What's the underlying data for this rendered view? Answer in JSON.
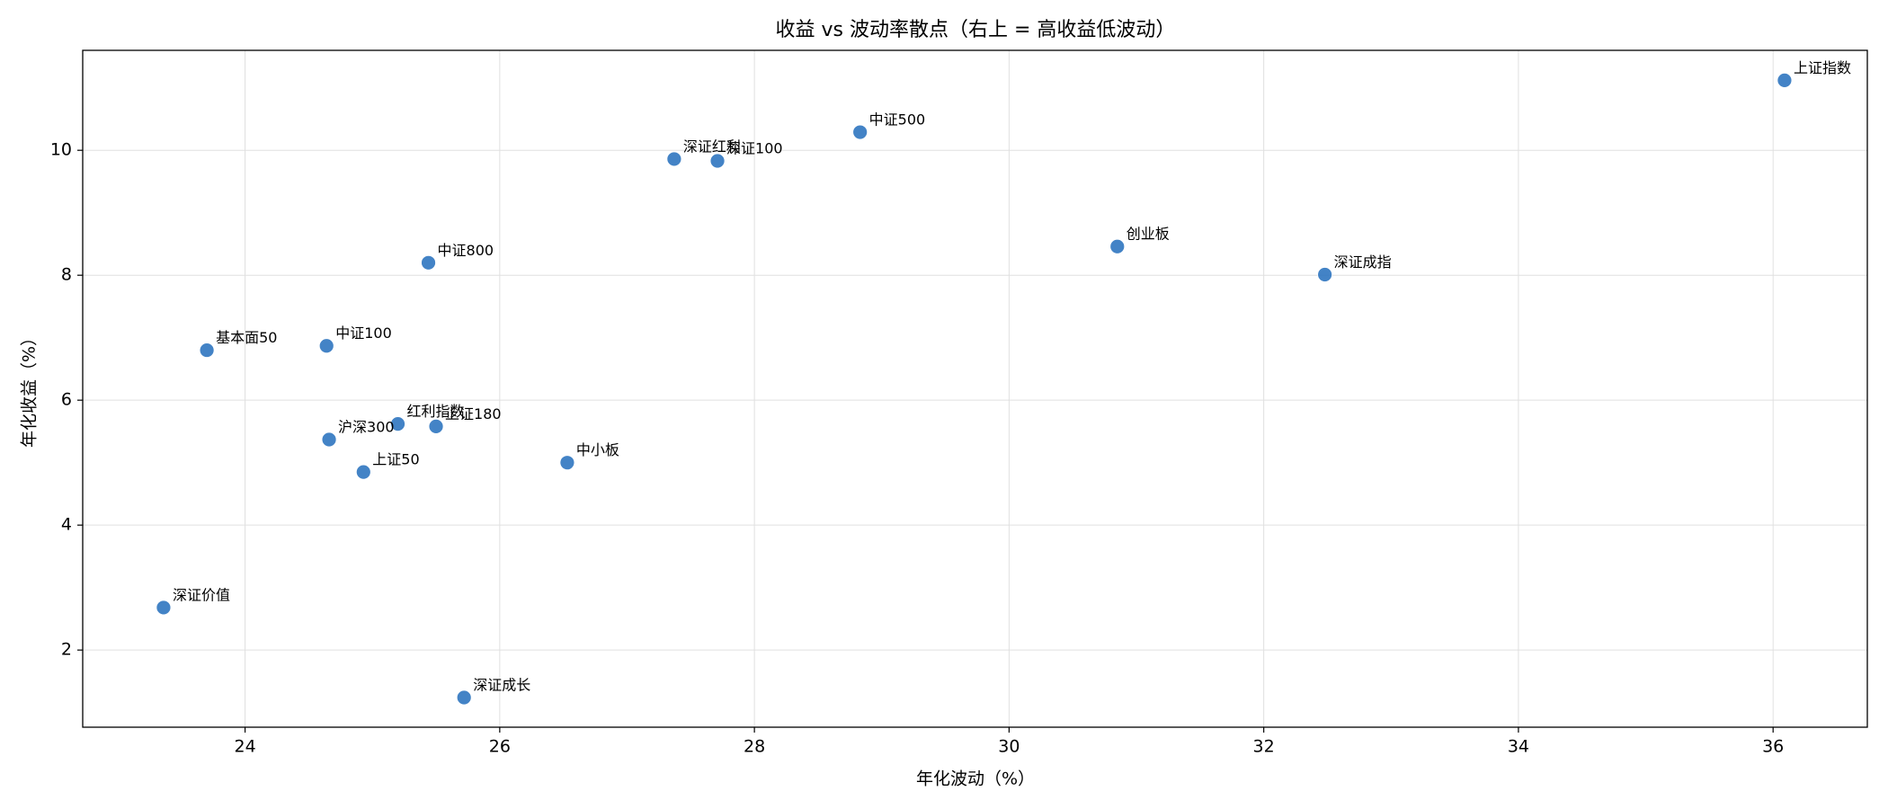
{
  "chart_data": {
    "type": "scatter",
    "title": "收益 vs 波动率散点（右上 = 高收益低波动）",
    "x_label": "年化波动（%）",
    "y_label": "年化收益（%）",
    "labels": [
      "上证指数",
      "中证500",
      "深证红利",
      "深证100",
      "创业板",
      "深证成指",
      "中证800",
      "基本面50",
      "中证100",
      "红利指数",
      "上证180",
      "沪深300",
      "上证50",
      "中小板",
      "深证价值",
      "深证成长"
    ],
    "x": [
      36.09,
      28.83,
      27.37,
      27.71,
      30.85,
      32.48,
      25.44,
      23.7,
      24.64,
      25.2,
      25.5,
      24.66,
      24.93,
      26.53,
      23.36,
      25.72
    ],
    "y": [
      11.12,
      10.29,
      9.86,
      9.83,
      8.46,
      8.01,
      8.2,
      6.8,
      6.87,
      5.62,
      5.58,
      5.37,
      4.85,
      5.0,
      2.68,
      1.24
    ],
    "color": "#2f76c0",
    "xlim": [
      22.725,
      36.74
    ],
    "ylim": [
      0.765,
      11.6
    ],
    "xticks": [
      24,
      26,
      28,
      30,
      32,
      34,
      36
    ],
    "yticks": [
      2,
      4,
      6,
      8,
      10
    ],
    "grid": true
  }
}
